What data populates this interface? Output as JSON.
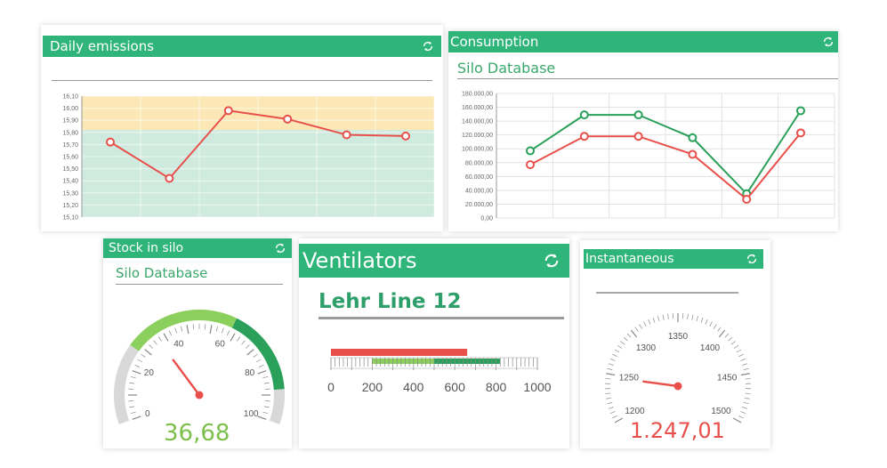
{
  "colors": {
    "header_green": "#2fb57a",
    "series_red": "#e8504b",
    "series_green": "#2aa05a",
    "band_yellow": "#fbe8b6",
    "band_teal": "#cfeadf",
    "value_green": "#7cbf4a",
    "value_red": "#e8504b"
  },
  "daily_emissions": {
    "title": "Daily emissions",
    "icon": "refresh-icon",
    "chart_data": {
      "type": "line",
      "y_ticks": [
        "16,10",
        "16,00",
        "15,90",
        "15,80",
        "15,70",
        "15,60",
        "15,50",
        "15,40",
        "15,30",
        "15,20",
        "15,10"
      ],
      "ylim": [
        15.1,
        16.1
      ],
      "bands": [
        {
          "from": 15.82,
          "to": 16.1,
          "color": "#fbe8b6"
        },
        {
          "from": 15.1,
          "to": 15.82,
          "color": "#cfeadf"
        }
      ],
      "series": [
        {
          "color": "#e8504b",
          "values": [
            15.72,
            15.42,
            15.98,
            15.91,
            15.78,
            15.77
          ]
        }
      ]
    }
  },
  "consumption": {
    "title": "Consumption",
    "subtitle": "Silo Database",
    "icon": "refresh-icon",
    "chart_data": {
      "type": "line",
      "y_ticks": [
        "180.000,00",
        "160.000,00",
        "140.000,00",
        "120.000,00",
        "100.000,00",
        "80.000,00",
        "60.000,00",
        "40.000,00",
        "20.000,00",
        "0,00"
      ],
      "ylim": [
        0,
        180000
      ],
      "series": [
        {
          "color": "#2aa05a",
          "values": [
            97000,
            149000,
            149000,
            116000,
            35000,
            155000
          ]
        },
        {
          "color": "#e8504b",
          "values": [
            77000,
            118000,
            118000,
            92000,
            27000,
            123000
          ]
        }
      ]
    }
  },
  "stock": {
    "title": "Stock in silo",
    "subtitle": "Silo Database",
    "icon": "refresh-icon",
    "gauge_labels": [
      "0",
      "20",
      "40",
      "60",
      "80",
      "100"
    ],
    "value": "36,68",
    "needle_value": 36.68
  },
  "ventilators": {
    "title": "Ventilators",
    "subtitle": "Lehr Line 12",
    "icon": "refresh-icon",
    "scale_labels": [
      "0",
      "200",
      "400",
      "600",
      "800",
      "1000"
    ],
    "bar_red_value": 660,
    "band_green_from": 200,
    "band_green_to": 500,
    "band_teal_from": 500,
    "band_teal_to": 820
  },
  "instantaneous": {
    "title": "Instantaneous",
    "icon": "refresh-icon",
    "gauge_labels": [
      "1200",
      "1250",
      "1300",
      "1350",
      "1400",
      "1450",
      "1500"
    ],
    "value": "1.247,01",
    "needle_value": 1247.01
  }
}
